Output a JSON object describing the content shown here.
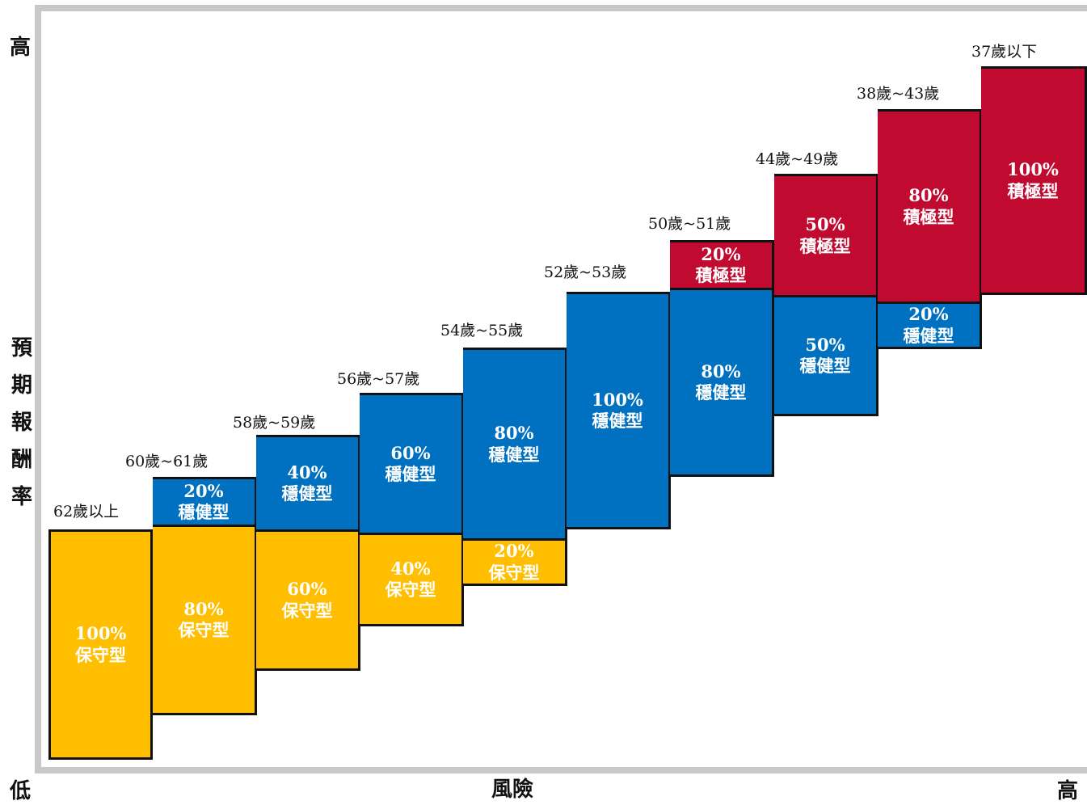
{
  "y_axis": {
    "high": "高",
    "low": "低",
    "title_chars": [
      "預",
      "期",
      "報",
      "酬",
      "率"
    ]
  },
  "x_axis": {
    "title": "風險",
    "high": "高"
  },
  "colors": {
    "conservative": "#FFBE00",
    "balanced": "#0070C0",
    "aggressive": "#C00A30",
    "frame": "#C8C8C8"
  },
  "columns": [
    {
      "age": "62歲以上",
      "segments": [
        {
          "type": "conservative",
          "percent": 100,
          "pct_label": "100%",
          "type_label": "保守型"
        }
      ]
    },
    {
      "age": "60歲~61歲",
      "segments": [
        {
          "type": "balanced",
          "percent": 20,
          "pct_label": "20%",
          "type_label": "穩健型"
        },
        {
          "type": "conservative",
          "percent": 80,
          "pct_label": "80%",
          "type_label": "保守型"
        }
      ]
    },
    {
      "age": "58歲~59歲",
      "segments": [
        {
          "type": "balanced",
          "percent": 40,
          "pct_label": "40%",
          "type_label": "穩健型"
        },
        {
          "type": "conservative",
          "percent": 60,
          "pct_label": "60%",
          "type_label": "保守型"
        }
      ]
    },
    {
      "age": "56歲~57歲",
      "segments": [
        {
          "type": "balanced",
          "percent": 60,
          "pct_label": "60%",
          "type_label": "穩健型"
        },
        {
          "type": "conservative",
          "percent": 40,
          "pct_label": "40%",
          "type_label": "保守型"
        }
      ]
    },
    {
      "age": "54歲~55歲",
      "segments": [
        {
          "type": "balanced",
          "percent": 80,
          "pct_label": "80%",
          "type_label": "穩健型"
        },
        {
          "type": "conservative",
          "percent": 20,
          "pct_label": "20%",
          "type_label": "保守型"
        }
      ]
    },
    {
      "age": "52歲~53歲",
      "segments": [
        {
          "type": "balanced",
          "percent": 100,
          "pct_label": "100%",
          "type_label": "穩健型"
        }
      ]
    },
    {
      "age": "50歲~51歲",
      "segments": [
        {
          "type": "aggressive",
          "percent": 20,
          "pct_label": "20%",
          "type_label": "積極型"
        },
        {
          "type": "balanced",
          "percent": 80,
          "pct_label": "80%",
          "type_label": "穩健型"
        }
      ]
    },
    {
      "age": "44歲~49歲",
      "segments": [
        {
          "type": "aggressive",
          "percent": 50,
          "pct_label": "50%",
          "type_label": "積極型"
        },
        {
          "type": "balanced",
          "percent": 50,
          "pct_label": "50%",
          "type_label": "穩健型"
        }
      ]
    },
    {
      "age": "38歲~43歲",
      "segments": [
        {
          "type": "aggressive",
          "percent": 80,
          "pct_label": "80%",
          "type_label": "積極型"
        },
        {
          "type": "balanced",
          "percent": 20,
          "pct_label": "20%",
          "type_label": "穩健型"
        }
      ]
    },
    {
      "age": "37歲以下",
      "segments": [
        {
          "type": "aggressive",
          "percent": 100,
          "pct_label": "100%",
          "type_label": "積極型"
        }
      ]
    }
  ]
}
